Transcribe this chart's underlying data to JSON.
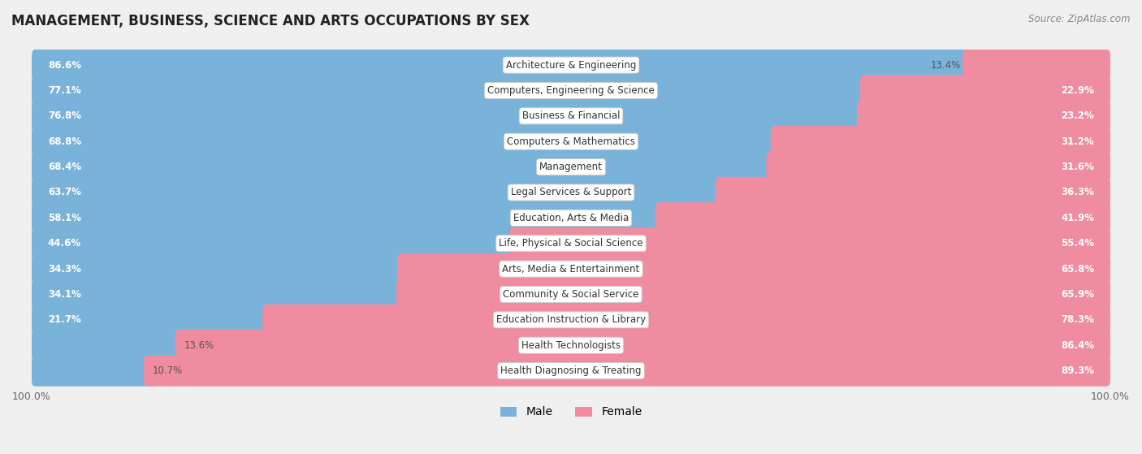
{
  "title": "MANAGEMENT, BUSINESS, SCIENCE AND ARTS OCCUPATIONS BY SEX",
  "source": "Source: ZipAtlas.com",
  "categories": [
    "Architecture & Engineering",
    "Computers, Engineering & Science",
    "Business & Financial",
    "Computers & Mathematics",
    "Management",
    "Legal Services & Support",
    "Education, Arts & Media",
    "Life, Physical & Social Science",
    "Arts, Media & Entertainment",
    "Community & Social Service",
    "Education Instruction & Library",
    "Health Technologists",
    "Health Diagnosing & Treating"
  ],
  "male_pct": [
    86.6,
    77.1,
    76.8,
    68.8,
    68.4,
    63.7,
    58.1,
    44.6,
    34.3,
    34.1,
    21.7,
    13.6,
    10.7
  ],
  "female_pct": [
    13.4,
    22.9,
    23.2,
    31.2,
    31.6,
    36.3,
    41.9,
    55.4,
    65.8,
    65.9,
    78.3,
    86.4,
    89.3
  ],
  "male_color": "#7ab3d9",
  "female_color": "#f08ca0",
  "bg_color": "#f0f0f0",
  "row_bg_color": "#ffffff",
  "row_border_color": "#d8d8d8",
  "title_fontsize": 12,
  "label_fontsize": 8.5,
  "legend_fontsize": 10,
  "inside_label_threshold": 20
}
